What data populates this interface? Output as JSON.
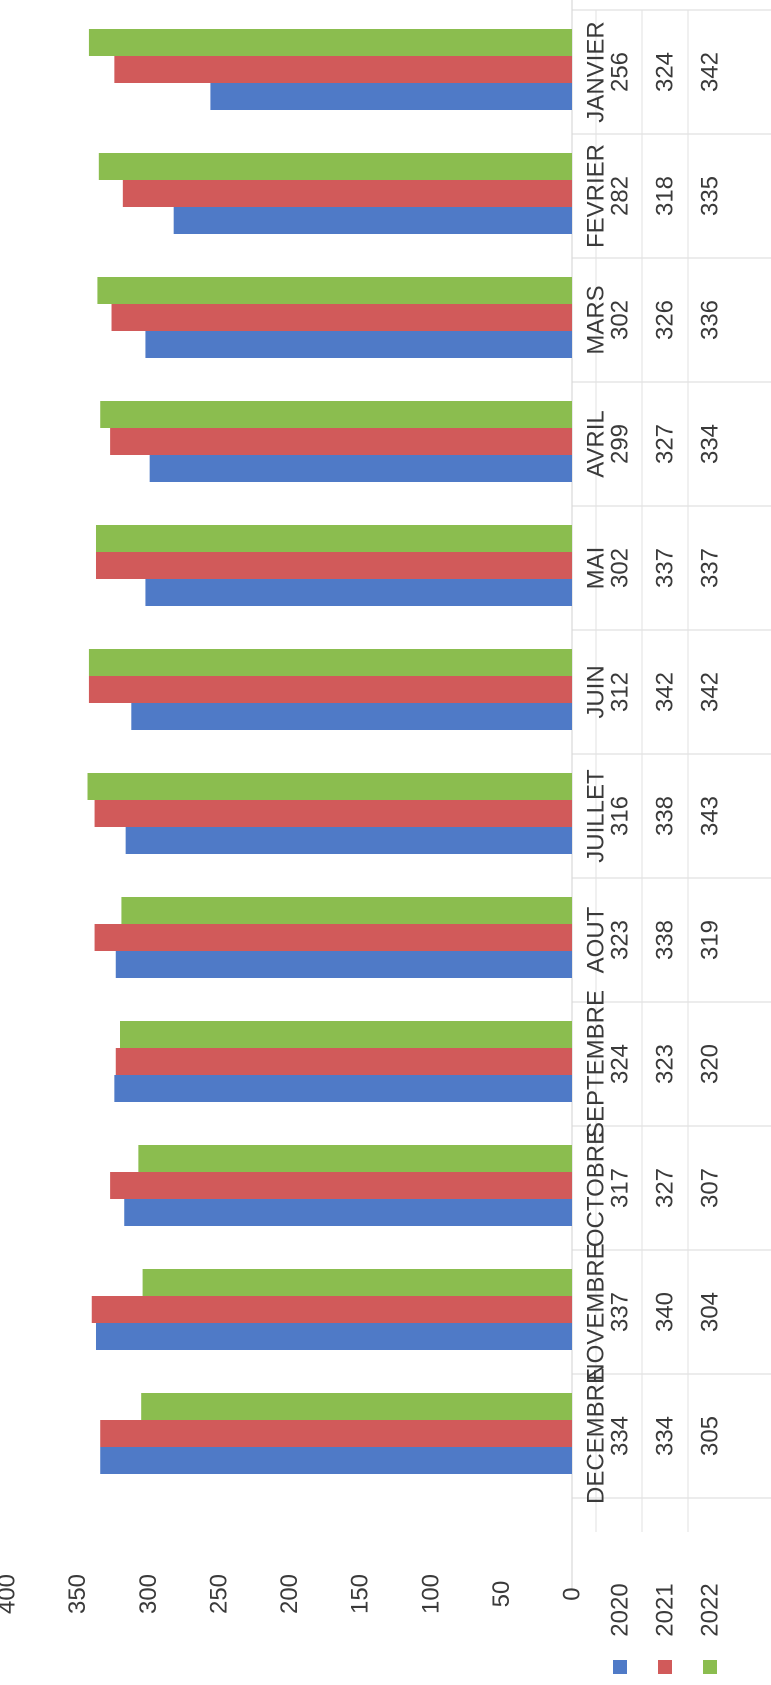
{
  "chart_data": {
    "type": "bar",
    "orientation": "horizontal",
    "categories": [
      "JANVIER",
      "FEVRIER",
      "MARS",
      "AVRIL",
      "MAI",
      "JUIN",
      "JUILLET",
      "AOUT",
      "SEPTEMBRE",
      "OCTOBRE",
      "NOVEMBRE",
      "DECEMBRE"
    ],
    "series": [
      {
        "name": "2020",
        "color": "#4f7ac7",
        "values": [
          256,
          282,
          302,
          299,
          302,
          312,
          316,
          323,
          324,
          317,
          337,
          334
        ]
      },
      {
        "name": "2021",
        "color": "#d15a5a",
        "values": [
          324,
          318,
          326,
          327,
          337,
          342,
          338,
          338,
          323,
          327,
          340,
          334
        ]
      },
      {
        "name": "2022",
        "color": "#8bbd4f",
        "values": [
          342,
          335,
          336,
          334,
          337,
          342,
          343,
          319,
          320,
          307,
          304,
          305
        ]
      }
    ],
    "value_axis": {
      "min": 0,
      "max": 400,
      "ticks": [
        "0",
        "50",
        "100",
        "150",
        "200",
        "250",
        "300",
        "350",
        "400"
      ]
    },
    "grid": false,
    "data_table": true,
    "legend": "data-table"
  }
}
